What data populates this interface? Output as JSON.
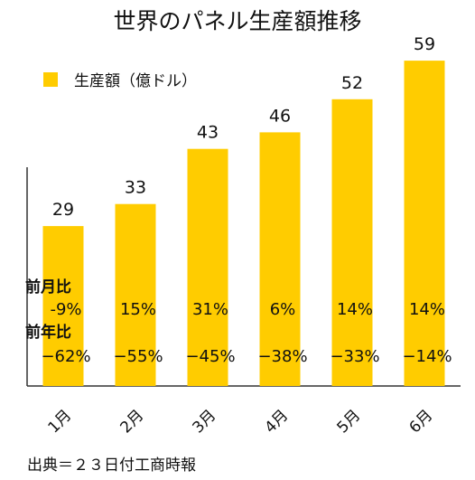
{
  "chart_data": {
    "type": "bar",
    "title": "世界のパネル生産額推移",
    "categories": [
      "1月",
      "2月",
      "3月",
      "4月",
      "5月",
      "6月"
    ],
    "series": [
      {
        "name": "生産額（億ドル）",
        "values": [
          29,
          33,
          43,
          46,
          52,
          59
        ]
      }
    ],
    "data_labels": [
      "29",
      "33",
      "43",
      "46",
      "52",
      "59"
    ],
    "ylim": [
      0,
      65
    ],
    "grid": false,
    "legend_position": "top-left",
    "colors": {
      "bar": "#FFCC00",
      "axis": "#333333",
      "text": "#111111"
    },
    "annotations": {
      "mom_label": "前月比",
      "mom_values": [
        "-9%",
        "15%",
        "31%",
        "6%",
        "14%",
        "14%"
      ],
      "yoy_label": "前年比",
      "yoy_values": [
        "−62%",
        "−55%",
        "−45%",
        "−38%",
        "−33%",
        "−14%"
      ]
    }
  },
  "source": "出典＝２３日付工商時報"
}
